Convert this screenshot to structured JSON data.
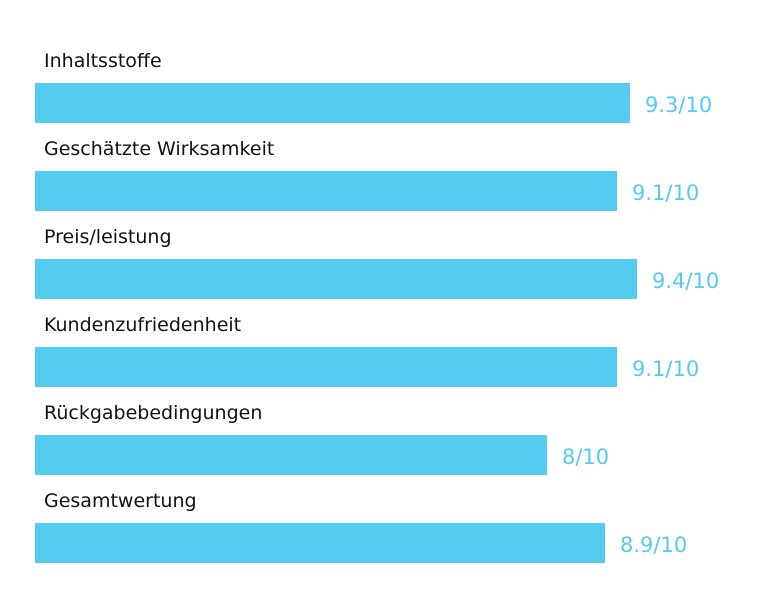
{
  "colors": {
    "bar": "#55CBF2",
    "value_text": "#55CBF2",
    "label_text": "#111111"
  },
  "chart_data": {
    "type": "bar",
    "orientation": "horizontal",
    "xlim": [
      0,
      10
    ],
    "grid": false,
    "categories": [
      "Inhaltsstoffe",
      "Geschätzte Wirksamkeit",
      "Preis/leistung",
      "Kundenzufriedenheit",
      "Rückgabebedingungen",
      "Gesamtwertung"
    ],
    "values": [
      9.3,
      9.1,
      9.4,
      9.1,
      8,
      8.9
    ],
    "value_labels": [
      "9.3/10",
      "9.1/10",
      "9.4/10",
      "9.1/10",
      "8/10",
      "8.9/10"
    ]
  }
}
